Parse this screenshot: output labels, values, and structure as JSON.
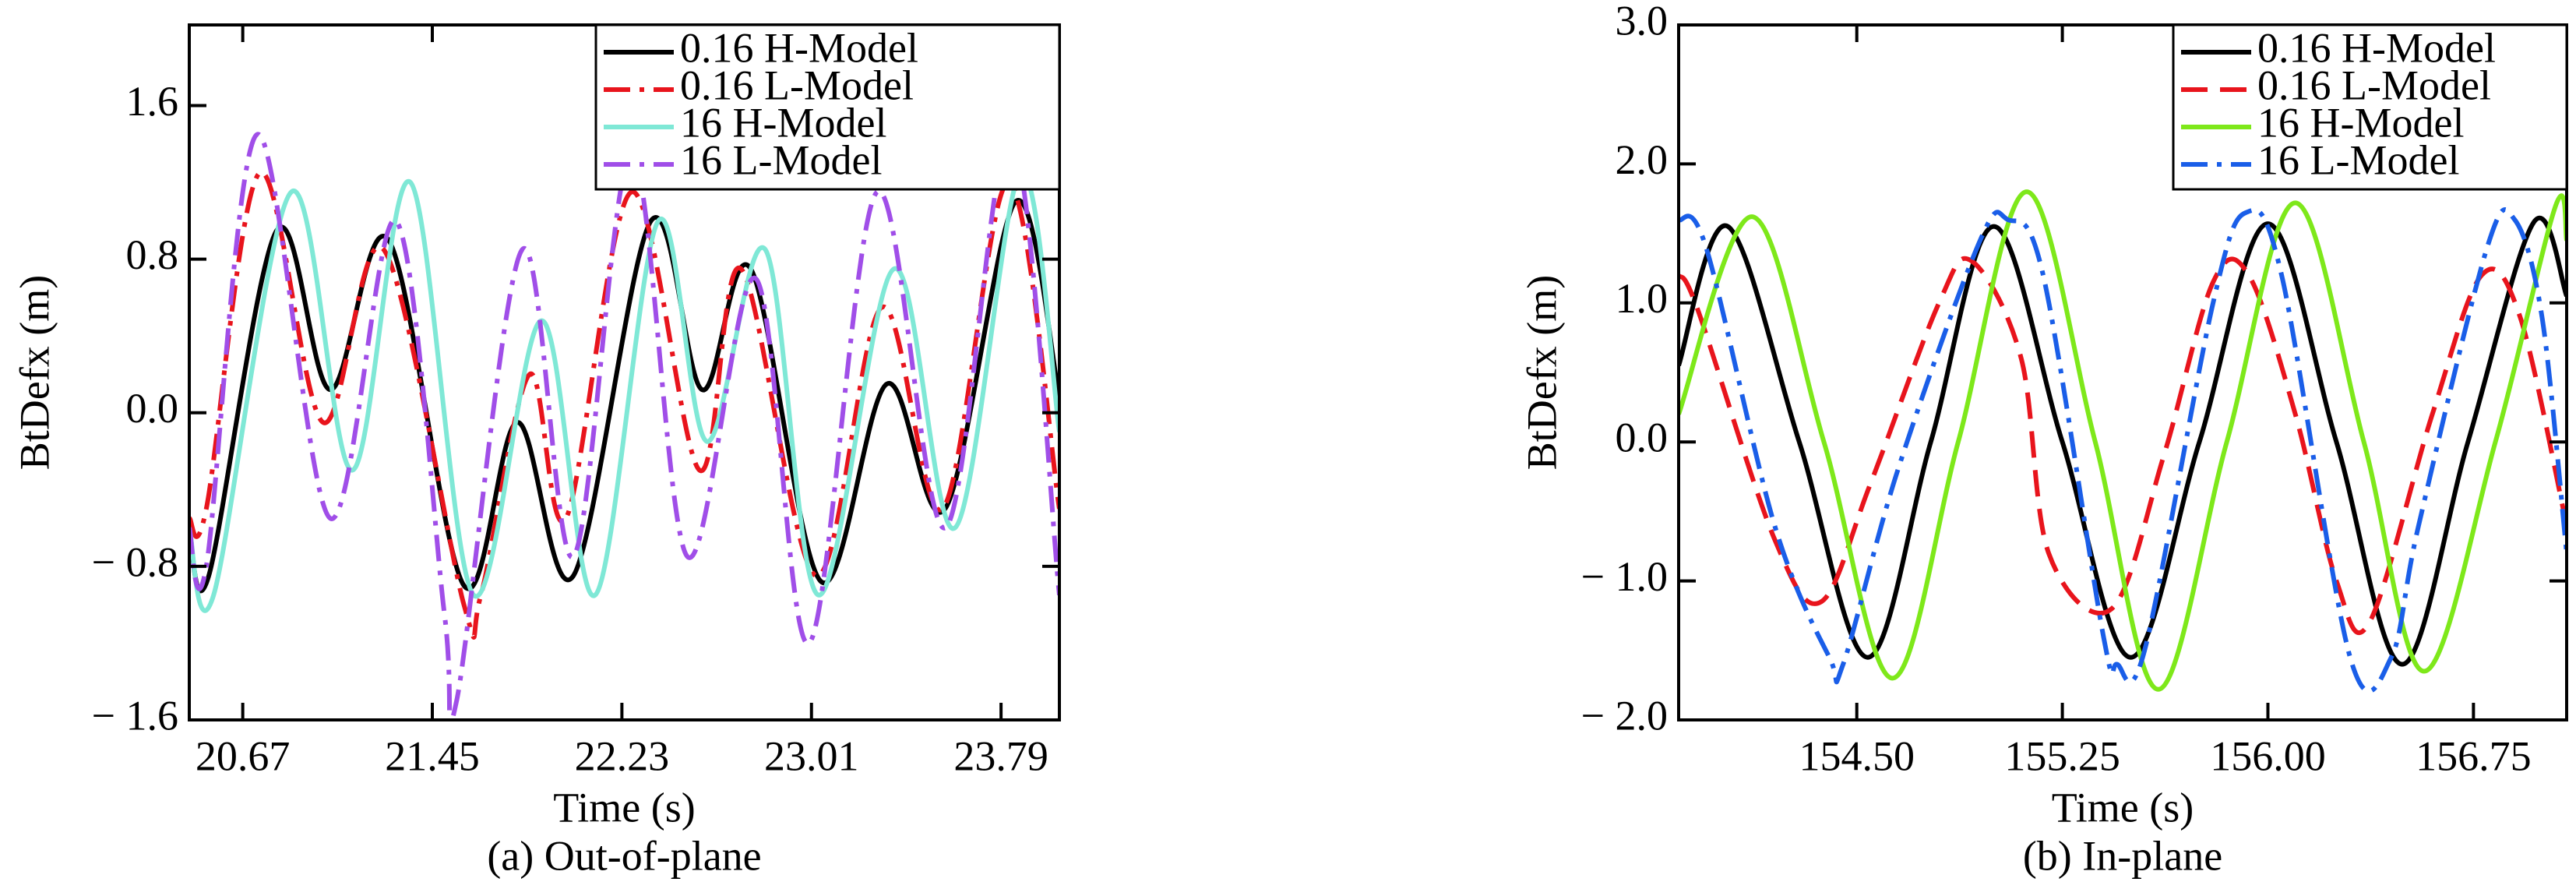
{
  "chart_data": [
    {
      "type": "line",
      "caption": "(a) Out-of-plane",
      "xlabel": "Time (s)",
      "ylabel": "BtDefx (m)",
      "xlim": [
        20.45,
        24.03
      ],
      "ylim": [
        -1.6,
        2.02
      ],
      "xticks": [
        20.67,
        21.45,
        22.23,
        23.01,
        23.79
      ],
      "yticks": [
        {
          "value": -1.6,
          "label": "− 1.6"
        },
        {
          "value": -0.8,
          "label": "− 0.8"
        },
        {
          "value": 0,
          "label": "0.0"
        },
        0.8,
        1.6
      ],
      "series": [
        {
          "name": "0.16 H-Model",
          "color": "#000000",
          "linestyle": "solid",
          "x": [
            20.45,
            20.53,
            20.81,
            21.03,
            21.27,
            21.58,
            21.8,
            22.03,
            22.35,
            22.56,
            22.76,
            23.05,
            23.32,
            23.56,
            23.85,
            24.03
          ],
          "values": [
            -0.6,
            -0.85,
            0.95,
            0.12,
            0.9,
            -0.9,
            -0.05,
            -0.85,
            1.0,
            0.12,
            0.75,
            -0.88,
            0.15,
            -0.5,
            1.1,
            0.08
          ]
        },
        {
          "name": "0.16 L-Model",
          "color": "#e8141c",
          "linestyle": "dashdot",
          "x": [
            20.45,
            20.52,
            20.74,
            21.0,
            21.25,
            21.58,
            21.65,
            21.85,
            22.0,
            22.27,
            22.55,
            22.72,
            23.03,
            23.3,
            23.55,
            23.82,
            24.03
          ],
          "values": [
            -0.55,
            -0.5,
            1.25,
            -0.05,
            0.85,
            -1.0,
            -0.95,
            0.2,
            -0.55,
            1.15,
            -0.3,
            0.75,
            -0.85,
            0.55,
            -0.5,
            1.2,
            -0.5
          ]
        },
        {
          "name": "16 H-Model",
          "color": "#7fe8d6",
          "linestyle": "solid",
          "x": [
            20.45,
            20.55,
            20.87,
            21.12,
            21.36,
            21.62,
            21.9,
            22.12,
            22.38,
            22.58,
            22.82,
            23.04,
            23.35,
            23.6,
            23.87,
            24.03
          ],
          "values": [
            -0.6,
            -0.95,
            1.15,
            -0.3,
            1.2,
            -0.95,
            0.48,
            -0.95,
            1.0,
            -0.15,
            0.85,
            -0.95,
            0.75,
            -0.6,
            1.25,
            -0.1
          ]
        },
        {
          "name": "16 L-Model",
          "color": "#a04ee8",
          "linestyle": "dashdot",
          "x": [
            20.45,
            20.52,
            20.73,
            21.03,
            21.3,
            21.5,
            21.55,
            21.82,
            22.03,
            22.27,
            22.5,
            22.78,
            23.0,
            23.28,
            23.56,
            23.83,
            24.03
          ],
          "values": [
            -0.6,
            -0.8,
            1.45,
            -0.55,
            1.0,
            -1.05,
            -1.5,
            0.85,
            -0.75,
            1.35,
            -0.75,
            0.7,
            -1.2,
            1.15,
            -0.6,
            1.45,
            -0.95
          ]
        }
      ]
    },
    {
      "type": "line",
      "caption": "(b) In-plane",
      "xlabel": "Time (s)",
      "ylabel": "BtDefx (m)",
      "xlim": [
        153.85,
        157.09
      ],
      "ylim": [
        -2,
        3
      ],
      "xticks": [
        {
          "value": 154.5,
          "label": "154.50"
        },
        155.25,
        {
          "value": 156,
          "label": "156.00"
        },
        156.75
      ],
      "yticks": [
        {
          "value": -2,
          "label": "− 2.0"
        },
        {
          "value": -1,
          "label": "− 1.0"
        },
        {
          "value": 0,
          "label": "0.0"
        },
        {
          "value": 1,
          "label": "1.0"
        },
        {
          "value": 2,
          "label": "2.0"
        },
        {
          "value": 3,
          "label": "3.0"
        }
      ],
      "series": [
        {
          "name": "0.16 H-Model",
          "color": "#000000",
          "linestyle": "solid",
          "x": [
            153.85,
            154.03,
            154.29,
            154.54,
            154.77,
            155.0,
            155.25,
            155.5,
            155.75,
            156.0,
            156.25,
            156.49,
            156.73,
            156.97,
            157.09
          ],
          "values": [
            0.55,
            1.55,
            0,
            -1.55,
            0,
            1.55,
            0,
            -1.55,
            0,
            1.57,
            0,
            -1.6,
            0,
            1.58,
            1.05
          ]
        },
        {
          "name": "0.16 L-Model",
          "color": "#e8141c",
          "linestyle": "dashed",
          "x": [
            153.85,
            153.92,
            154.2,
            154.37,
            154.55,
            154.8,
            154.92,
            155.1,
            155.2,
            155.43,
            155.62,
            155.8,
            155.93,
            156.1,
            156.25,
            156.37,
            156.6,
            156.78,
            156.92,
            157.09
          ],
          "values": [
            1.2,
            0.95,
            -0.7,
            -1.15,
            -0.3,
            1.0,
            1.3,
            0.6,
            -0.8,
            -1.2,
            -0.1,
            1.15,
            1.2,
            0.2,
            -1.0,
            -1.3,
            0.2,
            1.2,
            0.9,
            -0.6
          ]
        },
        {
          "name": "16 H-Model",
          "color": "#7ee81a",
          "linestyle": "solid",
          "x": [
            153.85,
            154.12,
            154.38,
            154.63,
            154.87,
            155.12,
            155.37,
            155.6,
            155.85,
            156.1,
            156.35,
            156.57,
            156.83,
            157.05,
            157.09
          ],
          "values": [
            0.2,
            1.62,
            0,
            -1.7,
            0,
            1.8,
            0,
            -1.78,
            0,
            1.72,
            0,
            -1.65,
            0,
            1.7,
            1.45
          ]
        },
        {
          "name": "16 L-Model",
          "color": "#1a5ee8",
          "linestyle": "dashdot",
          "x": [
            153.85,
            153.95,
            154.2,
            154.4,
            154.45,
            154.65,
            154.95,
            155.05,
            155.18,
            155.4,
            155.45,
            155.55,
            155.8,
            155.92,
            156.05,
            156.3,
            156.45,
            156.55,
            156.8,
            156.9,
            157.0,
            157.09
          ],
          "values": [
            1.6,
            1.4,
            -0.6,
            -1.55,
            -1.6,
            -0.2,
            1.45,
            1.6,
            1.2,
            -1.4,
            -1.6,
            -1.5,
            1.0,
            1.65,
            1.2,
            -1.55,
            -1.55,
            -0.6,
            1.4,
            1.6,
            0.9,
            -0.8
          ]
        }
      ]
    }
  ]
}
